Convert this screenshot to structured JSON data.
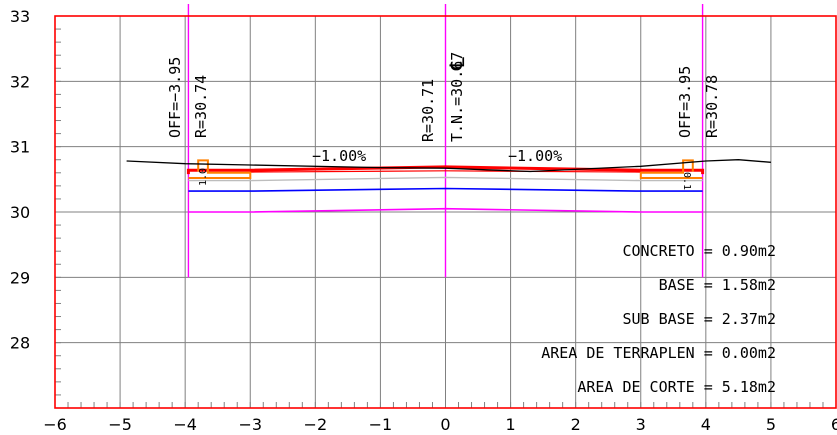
{
  "chart_data": {
    "type": "cross-section",
    "x_range": [
      -6,
      6
    ],
    "y_range": [
      27,
      33
    ],
    "x_ticks": [
      "−6",
      "−5",
      "−4",
      "−3",
      "−2",
      "−1",
      "0",
      "1",
      "2",
      "3",
      "4",
      "5",
      "6"
    ],
    "y_ticks": [
      "28",
      "29",
      "30",
      "31",
      "32",
      "33"
    ],
    "grid": true,
    "colors": {
      "grid": "#808080",
      "frame": "#ff0000",
      "axis_line": "#ff00ff",
      "terrain": "#000000",
      "concrete": "#ff0000",
      "base": "#bdbdbd",
      "subbase": "#0000ff",
      "curb": "#ff8000",
      "cut": "#ff00ff"
    },
    "vertical_lines_x": [
      -3.95,
      0,
      3.95
    ],
    "terrain": [
      [
        -4.9,
        30.78
      ],
      [
        -4.0,
        30.74
      ],
      [
        -3.0,
        30.72
      ],
      [
        -1.0,
        30.68
      ],
      [
        0,
        30.67
      ],
      [
        1.3,
        30.62
      ],
      [
        3.0,
        30.7
      ],
      [
        4.0,
        30.78
      ],
      [
        4.5,
        30.8
      ],
      [
        5.0,
        30.76
      ]
    ],
    "concrete_top": [
      [
        -3.95,
        30.58
      ],
      [
        -3.95,
        30.64
      ],
      [
        -3.0,
        30.64
      ],
      [
        0,
        30.69
      ],
      [
        3.0,
        30.64
      ],
      [
        3.95,
        30.64
      ],
      [
        3.95,
        30.58
      ]
    ],
    "concrete_bottom": [
      [
        -3.0,
        30.61
      ],
      [
        0,
        30.63
      ],
      [
        3.0,
        30.61
      ]
    ],
    "base_line": [
      [
        -3.95,
        30.48
      ],
      [
        -3.0,
        30.48
      ],
      [
        0,
        30.53
      ],
      [
        3.0,
        30.48
      ],
      [
        3.95,
        30.48
      ]
    ],
    "subbase_line": [
      [
        -3.95,
        30.32
      ],
      [
        -3.0,
        30.32
      ],
      [
        0,
        30.36
      ],
      [
        3.0,
        30.32
      ],
      [
        3.95,
        30.32
      ]
    ],
    "cut_bottom": [
      [
        -3.95,
        30.0
      ],
      [
        -3.0,
        30.0
      ],
      [
        0,
        30.05
      ],
      [
        3.0,
        30.0
      ],
      [
        3.95,
        30.0
      ]
    ],
    "curb_left": [
      [
        -3.95,
        30.52
      ],
      [
        -3.0,
        30.52
      ],
      [
        -3.0,
        30.6
      ],
      [
        -3.65,
        30.6
      ],
      [
        -3.65,
        30.79
      ],
      [
        -3.8,
        30.79
      ],
      [
        -3.8,
        30.62
      ]
    ],
    "curb_right": [
      [
        3.95,
        30.52
      ],
      [
        3.0,
        30.52
      ],
      [
        3.0,
        30.6
      ],
      [
        3.65,
        30.6
      ],
      [
        3.65,
        30.79
      ],
      [
        3.8,
        30.79
      ],
      [
        3.8,
        30.62
      ]
    ],
    "annotations": {
      "off_left": "OFF=−3.95",
      "r_left": "R=30.74",
      "r_center": "R=30.71",
      "tn_center": "T.N.=30.67",
      "off_right": "OFF=3.95",
      "r_right": "R=30.78",
      "slope_left": "−1.00%",
      "slope_right": "−1.00%",
      "centerline_symbol": "℄",
      "small_left": "1.0",
      "small_right": "0.1"
    },
    "areas": [
      "CONCRETO = 0.90m2",
      "BASE = 1.58m2",
      "SUB BASE = 2.37m2",
      "AREA DE TERRAPLEN = 0.00m2",
      "AREA DE CORTE = 5.18m2"
    ]
  }
}
